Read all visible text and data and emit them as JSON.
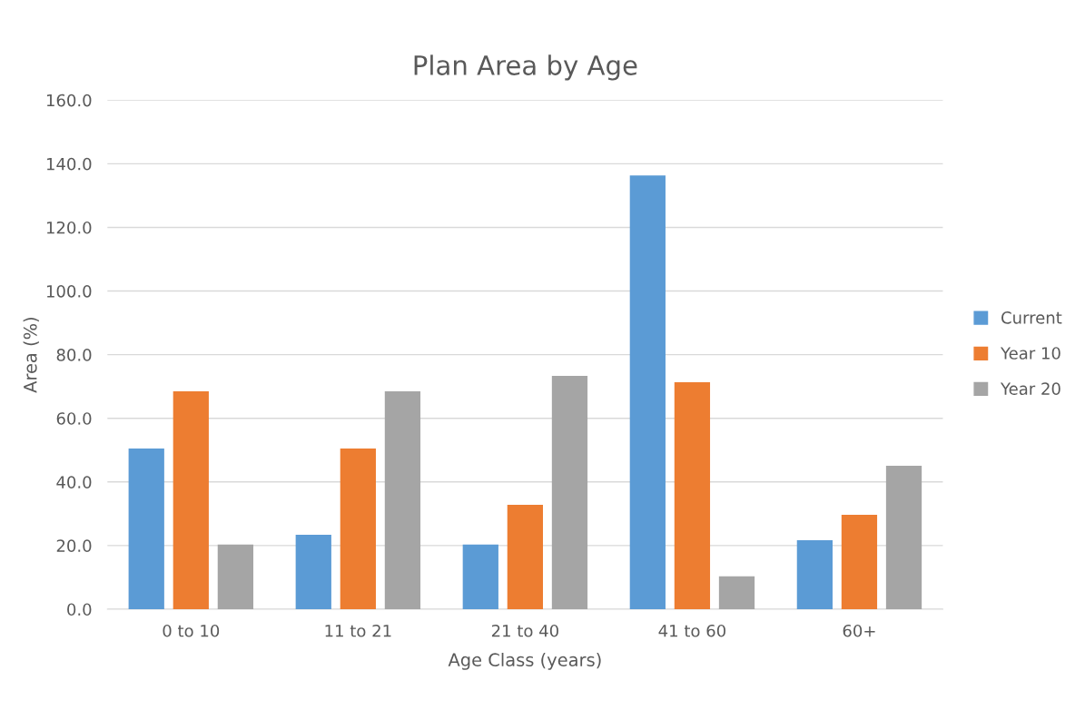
{
  "chart_data": {
    "type": "bar",
    "title": "Plan Area by Age",
    "xlabel": "Age Class (years)",
    "ylabel": "Area (%)",
    "categories": [
      "0 to 10",
      "11 to 21",
      "21 to 40",
      "41 to 60",
      "60+"
    ],
    "series": [
      {
        "name": "Current",
        "color": "#5b9bd5",
        "values": [
          50.5,
          23.4,
          20.3,
          136.3,
          21.7
        ]
      },
      {
        "name": "Year 10",
        "color": "#ed7d31",
        "values": [
          68.5,
          50.5,
          32.8,
          71.3,
          29.7
        ]
      },
      {
        "name": "Year 20",
        "color": "#a5a5a5",
        "values": [
          20.3,
          68.5,
          73.3,
          10.3,
          45.1
        ]
      }
    ],
    "ylim": [
      0,
      160
    ],
    "yticks": [
      {
        "value": 0,
        "label": "0.0"
      },
      {
        "value": 20,
        "label": "20.0"
      },
      {
        "value": 40,
        "label": "40.0"
      },
      {
        "value": 60,
        "label": "60.0"
      },
      {
        "value": 80,
        "label": "80.0"
      },
      {
        "value": 100,
        "label": "100.0"
      },
      {
        "value": 120,
        "label": "120.0"
      },
      {
        "value": 140,
        "label": "140.0"
      },
      {
        "value": 160,
        "label": "160.0"
      }
    ],
    "grid": "y",
    "legend": "right"
  }
}
